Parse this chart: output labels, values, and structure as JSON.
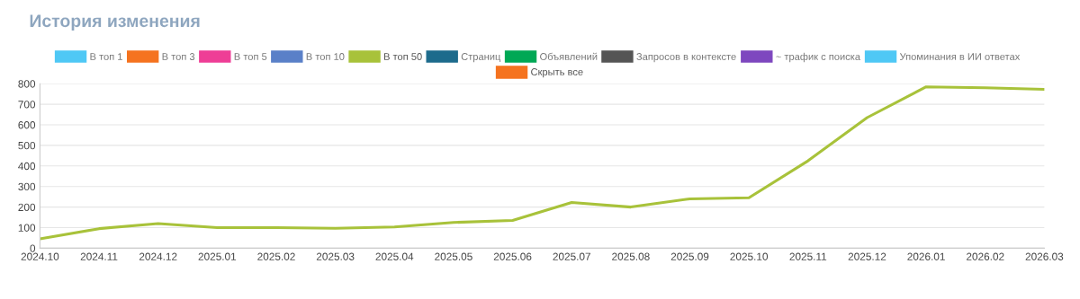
{
  "chart_data": {
    "type": "line",
    "title": "История изменения",
    "categories": [
      "2024.10",
      "2024.11",
      "2024.12",
      "2025.01",
      "2025.02",
      "2025.03",
      "2025.04",
      "2025.05",
      "2025.06",
      "2025.07",
      "2025.08",
      "2025.09",
      "2025.10",
      "2025.11",
      "2025.12",
      "2026.01",
      "2026.02",
      "2026.03"
    ],
    "series": [
      {
        "name": "В топ 1",
        "color": "#4fc8f5",
        "values": [
          null,
          null,
          null,
          null,
          null,
          null,
          null,
          null,
          null,
          null,
          null,
          null,
          null,
          null,
          null,
          null,
          null,
          null
        ]
      },
      {
        "name": "В топ 3",
        "color": "#f5731f",
        "values": [
          null,
          null,
          null,
          null,
          null,
          null,
          null,
          null,
          null,
          null,
          null,
          null,
          null,
          null,
          null,
          null,
          null,
          null
        ]
      },
      {
        "name": "В топ 5",
        "color": "#ee3e96",
        "values": [
          null,
          null,
          null,
          null,
          null,
          null,
          null,
          null,
          null,
          null,
          null,
          null,
          null,
          null,
          null,
          null,
          null,
          null
        ]
      },
      {
        "name": "В топ 10",
        "color": "#5a80c8",
        "values": [
          null,
          null,
          null,
          null,
          null,
          null,
          null,
          null,
          null,
          null,
          null,
          null,
          null,
          null,
          null,
          null,
          null,
          null
        ]
      },
      {
        "name": "В топ 50",
        "color": "#a8c23a",
        "values": [
          45,
          95,
          120,
          100,
          100,
          97,
          103,
          125,
          135,
          222,
          200,
          240,
          245,
          425,
          635,
          785,
          780,
          773
        ]
      },
      {
        "name": "Страниц",
        "color": "#1d6b8c",
        "values": [
          null,
          null,
          null,
          null,
          null,
          null,
          null,
          null,
          null,
          null,
          null,
          null,
          null,
          null,
          null,
          null,
          null,
          null
        ]
      },
      {
        "name": "Объявлений",
        "color": "#00a855",
        "values": [
          null,
          null,
          null,
          null,
          null,
          null,
          null,
          null,
          null,
          null,
          null,
          null,
          null,
          null,
          null,
          null,
          null,
          null
        ]
      },
      {
        "name": "Запросов в контексте",
        "color": "#555555",
        "values": [
          null,
          null,
          null,
          null,
          null,
          null,
          null,
          null,
          null,
          null,
          null,
          null,
          null,
          null,
          null,
          null,
          null,
          null
        ]
      },
      {
        "name": "~ трафик с поиска",
        "color": "#7e47bf",
        "values": [
          null,
          null,
          null,
          null,
          null,
          null,
          null,
          null,
          null,
          null,
          null,
          null,
          null,
          null,
          null,
          null,
          null,
          null
        ]
      },
      {
        "name": "Упоминания в ИИ ответах",
        "color": "#4fc8f5",
        "values": [
          null,
          null,
          null,
          null,
          null,
          null,
          null,
          null,
          null,
          null,
          null,
          null,
          null,
          null,
          null,
          null,
          null,
          null
        ]
      }
    ],
    "annotations": [
      "Скрыть все"
    ],
    "ylim": [
      0,
      800
    ],
    "yticks": [
      0,
      100,
      200,
      300,
      400,
      500,
      600,
      700,
      800
    ],
    "grid": "y",
    "legend": "top",
    "marker": "none",
    "line_style": "solid"
  }
}
